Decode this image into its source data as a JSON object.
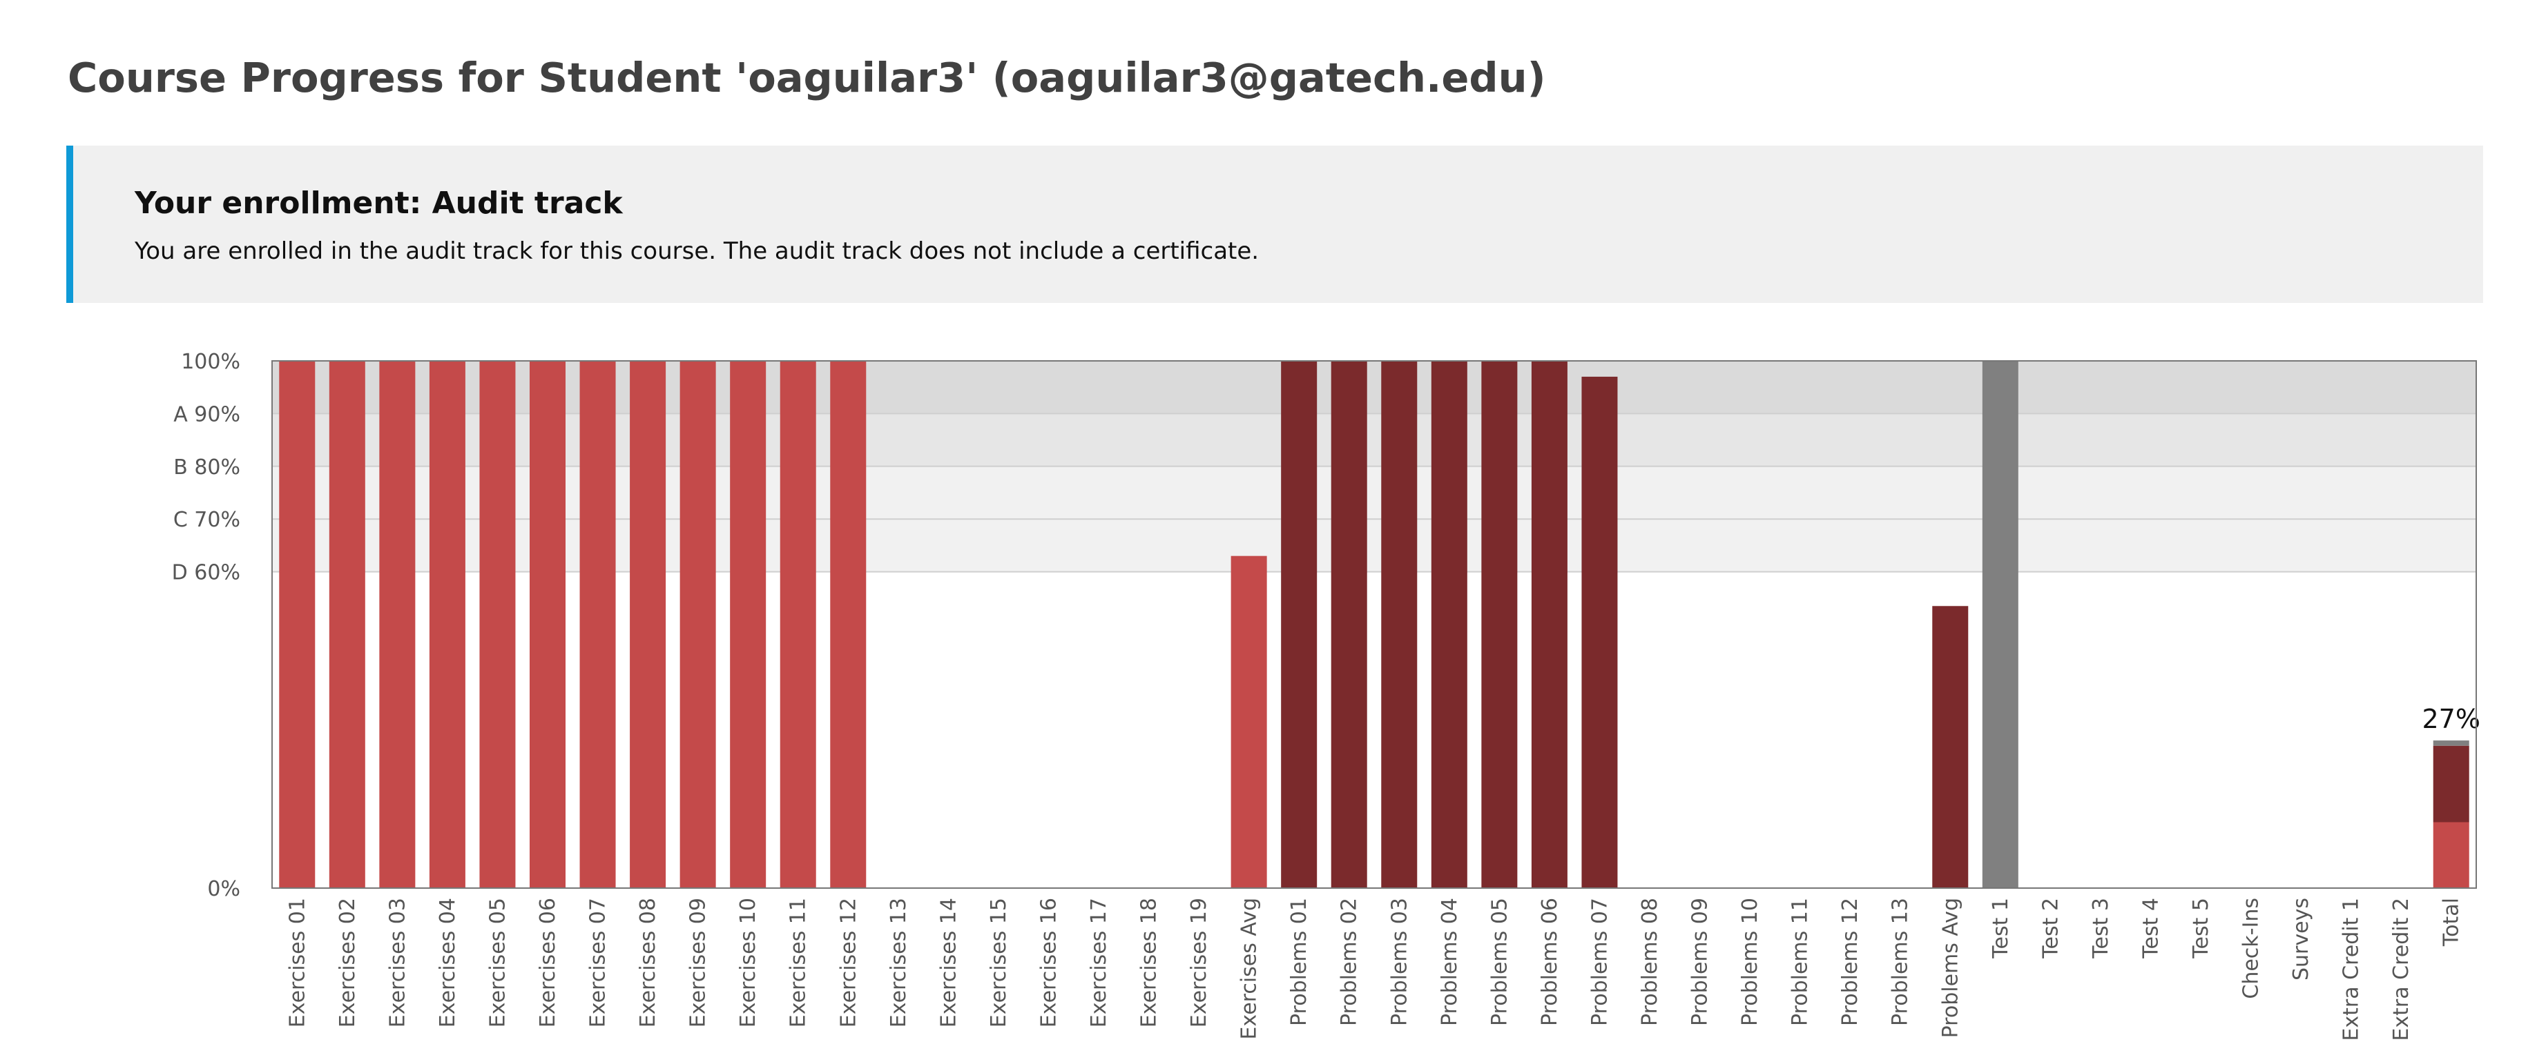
{
  "page": {
    "title": "Course Progress for Student 'oaguilar3' (oaguilar3@gatech.edu)"
  },
  "enrollment": {
    "heading": "Your enrollment: Audit track",
    "message": "You are enrolled in the audit track for this course. The audit track does not include a certificate."
  },
  "colors": {
    "accent_border": "#0f9ad7",
    "exercises": "#c44a4a",
    "problems": "#7b2a2c",
    "tests": "#808080",
    "band_light": "#f1f1f1",
    "band_dark": "#dadada",
    "band_mid": "#e6e6e6"
  },
  "chart_data": {
    "type": "bar",
    "ylim": [
      0,
      100
    ],
    "y_ticks": [
      {
        "value": 100,
        "label": "100%"
      },
      {
        "value": 90,
        "label": "A 90%"
      },
      {
        "value": 80,
        "label": "B 80%"
      },
      {
        "value": 70,
        "label": "C 70%"
      },
      {
        "value": 60,
        "label": "D 60%"
      },
      {
        "value": 0,
        "label": "0%"
      }
    ],
    "grade_bands": [
      {
        "grade": "A",
        "from": 90,
        "to": 100
      },
      {
        "grade": "B",
        "from": 80,
        "to": 90
      },
      {
        "grade": "C",
        "from": 70,
        "to": 80
      },
      {
        "grade": "D",
        "from": 60,
        "to": 70
      }
    ],
    "categories": [
      {
        "label": "Exercises 01",
        "value": 100,
        "group": "exercises"
      },
      {
        "label": "Exercises 02",
        "value": 100,
        "group": "exercises"
      },
      {
        "label": "Exercises 03",
        "value": 100,
        "group": "exercises"
      },
      {
        "label": "Exercises 04",
        "value": 100,
        "group": "exercises"
      },
      {
        "label": "Exercises 05",
        "value": 100,
        "group": "exercises"
      },
      {
        "label": "Exercises 06",
        "value": 100,
        "group": "exercises"
      },
      {
        "label": "Exercises 07",
        "value": 100,
        "group": "exercises"
      },
      {
        "label": "Exercises 08",
        "value": 100,
        "group": "exercises"
      },
      {
        "label": "Exercises 09",
        "value": 100,
        "group": "exercises"
      },
      {
        "label": "Exercises 10",
        "value": 100,
        "group": "exercises"
      },
      {
        "label": "Exercises 11",
        "value": 100,
        "group": "exercises"
      },
      {
        "label": "Exercises 12",
        "value": 100,
        "group": "exercises"
      },
      {
        "label": "Exercises 13",
        "value": 0,
        "group": "exercises"
      },
      {
        "label": "Exercises 14",
        "value": 0,
        "group": "exercises"
      },
      {
        "label": "Exercises 15",
        "value": 0,
        "group": "exercises"
      },
      {
        "label": "Exercises 16",
        "value": 0,
        "group": "exercises"
      },
      {
        "label": "Exercises 17",
        "value": 0,
        "group": "exercises"
      },
      {
        "label": "Exercises 18",
        "value": 0,
        "group": "exercises"
      },
      {
        "label": "Exercises 19",
        "value": 0,
        "group": "exercises"
      },
      {
        "label": "Exercises Avg",
        "value": 63,
        "group": "exercises"
      },
      {
        "label": "Problems 01",
        "value": 100,
        "group": "problems"
      },
      {
        "label": "Problems 02",
        "value": 100,
        "group": "problems"
      },
      {
        "label": "Problems 03",
        "value": 100,
        "group": "problems"
      },
      {
        "label": "Problems 04",
        "value": 100,
        "group": "problems"
      },
      {
        "label": "Problems 05",
        "value": 100,
        "group": "problems"
      },
      {
        "label": "Problems 06",
        "value": 100,
        "group": "problems"
      },
      {
        "label": "Problems 07",
        "value": 97,
        "group": "problems"
      },
      {
        "label": "Problems 08",
        "value": 0,
        "group": "problems"
      },
      {
        "label": "Problems 09",
        "value": 0,
        "group": "problems"
      },
      {
        "label": "Problems 10",
        "value": 0,
        "group": "problems"
      },
      {
        "label": "Problems 11",
        "value": 0,
        "group": "problems"
      },
      {
        "label": "Problems 12",
        "value": 0,
        "group": "problems"
      },
      {
        "label": "Problems 13",
        "value": 0,
        "group": "problems"
      },
      {
        "label": "Problems Avg",
        "value": 53.5,
        "group": "problems"
      },
      {
        "label": "Test 1",
        "value": 100,
        "group": "tests"
      },
      {
        "label": "Test 2",
        "value": 0,
        "group": "tests"
      },
      {
        "label": "Test 3",
        "value": 0,
        "group": "tests"
      },
      {
        "label": "Test 4",
        "value": 0,
        "group": "tests"
      },
      {
        "label": "Test 5",
        "value": 0,
        "group": "tests"
      },
      {
        "label": "Check-Ins",
        "value": 0,
        "group": "other"
      },
      {
        "label": "Surveys",
        "value": 0,
        "group": "other"
      },
      {
        "label": "Extra Credit 1",
        "value": 0,
        "group": "other"
      },
      {
        "label": "Extra Credit 2",
        "value": 0,
        "group": "other"
      }
    ],
    "total": {
      "label": "Total",
      "value_label": "27%",
      "segments": [
        {
          "group": "exercises",
          "value": 12.5
        },
        {
          "group": "problems",
          "value": 14.5
        },
        {
          "group": "tests",
          "value": 1.0
        }
      ]
    }
  }
}
